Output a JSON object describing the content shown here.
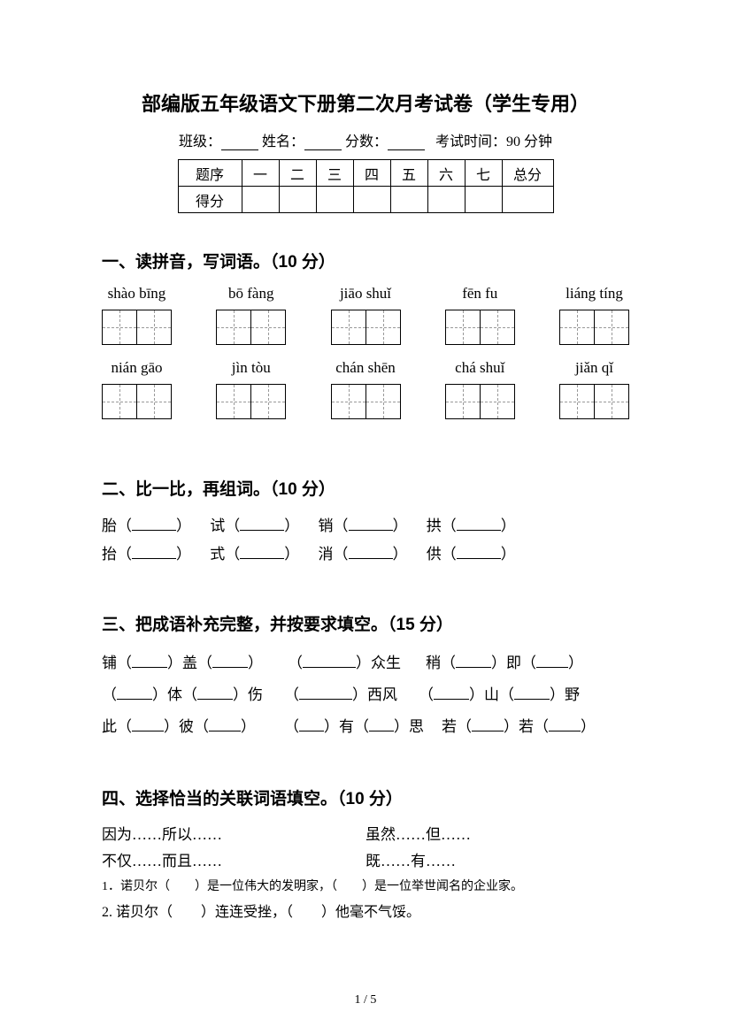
{
  "header": {
    "title": "部编版五年级语文下册第二次月考试卷（学生专用）",
    "class_label": "班级：",
    "name_label": "姓名：",
    "score_label": "分数：",
    "exam_time": "考试时间：90 分钟"
  },
  "score_table": {
    "row1": [
      "题序",
      "一",
      "二",
      "三",
      "四",
      "五",
      "六",
      "七",
      "总分"
    ],
    "row2_label": "得分"
  },
  "section1": {
    "title": "一、读拼音，写词语。（10 分）",
    "row1": [
      "shào bīng",
      "bō fàng",
      "jiāo shuǐ",
      "fēn fu",
      "liáng tíng"
    ],
    "row2": [
      "nián gāo",
      "jìn tòu",
      "chán shēn",
      "chá shuǐ",
      "jiǎn qǐ"
    ]
  },
  "section2": {
    "title": "二、比一比，再组词。（10 分）",
    "pairs": [
      [
        "胎",
        "抬"
      ],
      [
        "试",
        "式"
      ],
      [
        "销",
        "消"
      ],
      [
        "拱",
        "供"
      ]
    ]
  },
  "section3": {
    "title": "三、把成语补充完整，并按要求填空。（15 分）",
    "lines": [
      [
        {
          "t": "铺（"
        },
        {
          "u": 40
        },
        {
          "t": "）盖（"
        },
        {
          "u": 40
        },
        {
          "t": "）"
        },
        {
          "sp": 28
        },
        {
          "t": "（"
        },
        {
          "u": 60
        },
        {
          "t": "）众生"
        },
        {
          "sp": 28
        },
        {
          "t": "稍（"
        },
        {
          "u": 40
        },
        {
          "t": "）即（"
        },
        {
          "u": 36
        },
        {
          "t": "）"
        }
      ],
      [
        {
          "t": "（"
        },
        {
          "u": 40
        },
        {
          "t": "）体（"
        },
        {
          "u": 40
        },
        {
          "t": "）伤"
        },
        {
          "sp": 24
        },
        {
          "t": "（"
        },
        {
          "u": 60
        },
        {
          "t": "）西风"
        },
        {
          "sp": 24
        },
        {
          "t": "（"
        },
        {
          "u": 40
        },
        {
          "t": "）山（"
        },
        {
          "u": 40
        },
        {
          "t": "）野"
        }
      ],
      [
        {
          "t": "此（"
        },
        {
          "u": 36
        },
        {
          "t": "）彼（"
        },
        {
          "u": 36
        },
        {
          "t": "）"
        },
        {
          "sp": 32
        },
        {
          "t": "（"
        },
        {
          "u": 28
        },
        {
          "t": "）有（"
        },
        {
          "u": 28
        },
        {
          "t": "）思"
        },
        {
          "sp": 20
        },
        {
          "t": "若（"
        },
        {
          "u": 36
        },
        {
          "t": "）若（"
        },
        {
          "u": 36
        },
        {
          "t": "）"
        }
      ]
    ]
  },
  "section4": {
    "title": "四、选择恰当的关联词语填空。（10 分）",
    "options": [
      [
        "因为……所以……",
        "虽然……但……"
      ],
      [
        "不仅……而且……",
        "既……有……"
      ]
    ],
    "sentences": [
      "1．诺贝尔（　　）是一位伟大的发明家，（　　）是一位举世闻名的企业家。",
      "2. 诺贝尔（　　）连连受挫，（　　）他毫不气馁。"
    ]
  },
  "page_number": "1 / 5"
}
